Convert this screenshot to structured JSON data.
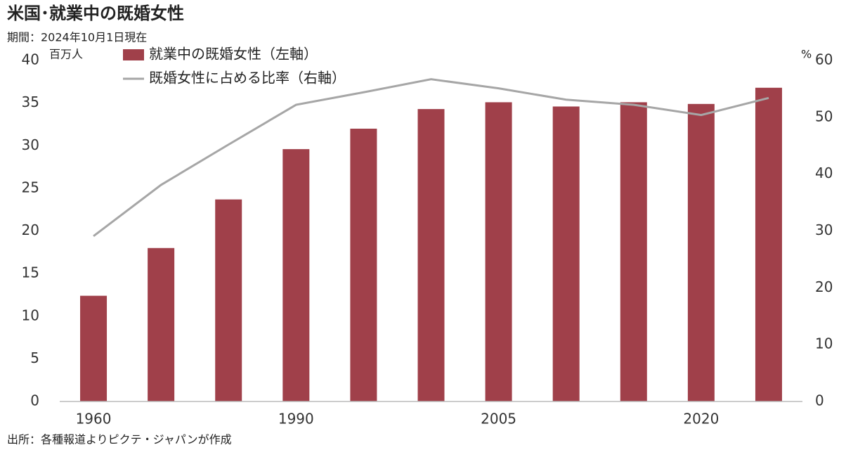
{
  "chart_data": {
    "type": "bar_line",
    "title": "米国･就業中の既婚女性",
    "subtitle": "期間：2024年10月1日現在",
    "source": "出所：各種報道よりピクテ・ジャパンが作成",
    "y_axis_label": "百万人",
    "y2_axis_label": "%",
    "categories": [
      "1960",
      null,
      null,
      "1990",
      null,
      null,
      "2005",
      null,
      null,
      "2020",
      null
    ],
    "series": [
      {
        "name": "就業中の既婚女性（左軸）",
        "type": "bar",
        "color": "#a0404a",
        "values": [
          12.4,
          18.0,
          23.7,
          29.6,
          32.0,
          34.3,
          35.1,
          34.6,
          35.1,
          34.9,
          36.8
        ]
      },
      {
        "name": "既婚女性に占める比率（右軸）",
        "type": "line",
        "axis": "y2",
        "color": "#a6a6a6",
        "values": [
          29.1,
          38.1,
          45.2,
          52.2,
          54.4,
          56.7,
          55.1,
          53.1,
          52.2,
          50.4,
          53.4
        ]
      }
    ],
    "ylim": [
      0,
      40
    ],
    "yticks": [
      0,
      5,
      10,
      15,
      20,
      25,
      30,
      35,
      40
    ],
    "y2lim": [
      0,
      60
    ],
    "y2ticks": [
      0,
      10,
      20,
      30,
      40,
      50,
      60
    ],
    "grid": false
  }
}
